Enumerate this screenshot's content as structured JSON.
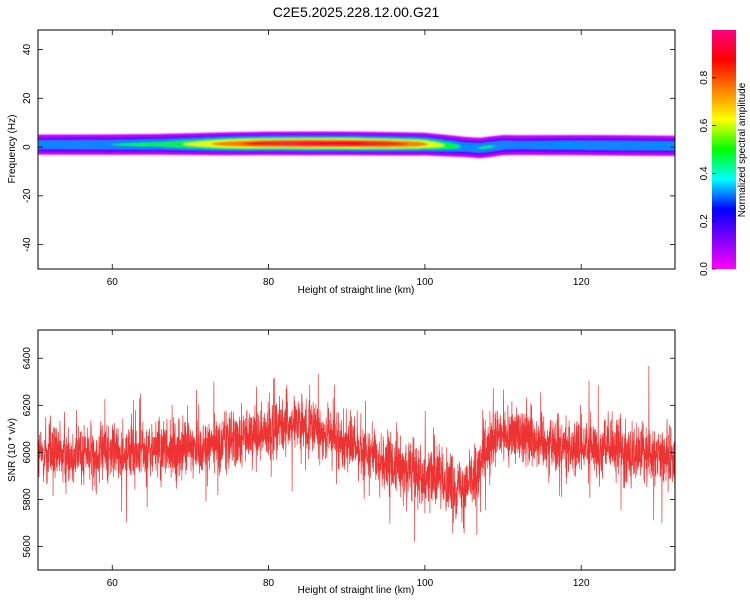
{
  "title": "C2E5.2025.228.12.00.G21",
  "chart_data": [
    {
      "type": "heatmap",
      "xlabel": "Height of straight line (km)",
      "ylabel": "Frequency (Hz)",
      "xlim": [
        50.5,
        132
      ],
      "ylim": [
        -50,
        48
      ],
      "xticks": [
        60,
        80,
        100,
        120
      ],
      "yticks": [
        -40,
        -20,
        0,
        20,
        40
      ],
      "colorbar": {
        "label": "Normalized spectral amplitude",
        "range": [
          0,
          1
        ],
        "ticks": [
          "0.0",
          "0.2",
          "0.4",
          "0.6",
          "0.8"
        ],
        "colormap": [
          "#ff00ff",
          "#7f00ff",
          "#0000ff",
          "#00ffff",
          "#00ff00",
          "#ffff00",
          "#ff8000",
          "#ff0000",
          "#ff0080"
        ]
      },
      "ridge": {
        "center_frequency_hz": [
          [
            51,
            1.0
          ],
          [
            60,
            1.0
          ],
          [
            70,
            1.2
          ],
          [
            80,
            1.5
          ],
          [
            90,
            1.5
          ],
          [
            100,
            1.2
          ],
          [
            104,
            0.3
          ],
          [
            107,
            -0.4
          ],
          [
            110,
            0.8
          ],
          [
            120,
            0.8
          ],
          [
            132,
            0.5
          ]
        ],
        "peak_amplitude": [
          [
            51,
            0.45
          ],
          [
            60,
            0.48
          ],
          [
            66,
            0.52
          ],
          [
            70,
            0.65
          ],
          [
            75,
            0.85
          ],
          [
            80,
            0.95
          ],
          [
            85,
            1.0
          ],
          [
            90,
            0.98
          ],
          [
            95,
            0.95
          ],
          [
            99,
            0.85
          ],
          [
            102,
            0.65
          ],
          [
            105,
            0.45
          ],
          [
            108,
            0.5
          ],
          [
            112,
            0.42
          ],
          [
            118,
            0.45
          ],
          [
            125,
            0.48
          ],
          [
            132,
            0.45
          ]
        ]
      }
    },
    {
      "type": "line",
      "xlabel": "Height of straight line (km)",
      "ylabel": "SNR (10 * v/v)",
      "xlim": [
        50.5,
        132
      ],
      "ylim": [
        5500,
        6520
      ],
      "xticks": [
        60,
        80,
        100,
        120
      ],
      "yticks": [
        5600,
        5800,
        6000,
        6200,
        6400
      ],
      "color": "#ee3333",
      "trend": [
        [
          51,
          5990
        ],
        [
          58,
          6000
        ],
        [
          65,
          6000
        ],
        [
          72,
          6030
        ],
        [
          78,
          6080
        ],
        [
          83,
          6120
        ],
        [
          86,
          6100
        ],
        [
          90,
          6040
        ],
        [
          95,
          5950
        ],
        [
          100,
          5910
        ],
        [
          104,
          5860
        ],
        [
          106,
          5880
        ],
        [
          109,
          6060
        ],
        [
          112,
          6080
        ],
        [
          118,
          6020
        ],
        [
          125,
          6010
        ],
        [
          132,
          5980
        ]
      ],
      "noise_amplitude": 110
    }
  ]
}
